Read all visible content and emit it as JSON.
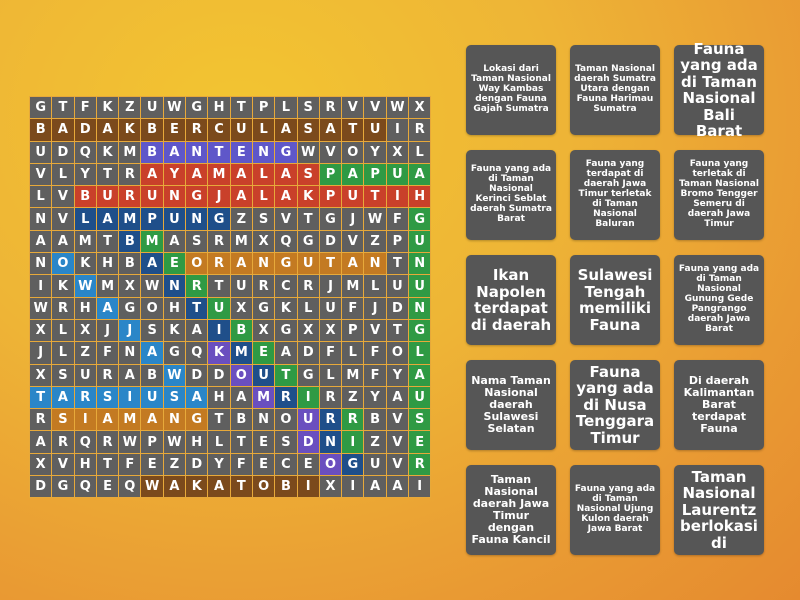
{
  "colors": {
    "gray": "#5f5f5f",
    "brown": "#7b4a1c",
    "violet": "#5f57c9",
    "red": "#c9402a",
    "green": "#2f9a44",
    "navy": "#1f4f8a",
    "light": "#2a86c8",
    "orange": "#c37a22",
    "purple": "#6a4fbf",
    "card": "#565656"
  },
  "grid": {
    "rows": [
      "GTFKZUWGHTPLSRVVWX",
      "BADAKBERCULASATUIR",
      "UDQKMBANTENGWVOYXL",
      "VLYTRAYAMALASPAPUA",
      "LVBURUNGJALAKPUTIH",
      "NVLAMPUNGZSVTGJWFG",
      "AAMTBMASRMXQGDVZPU",
      "NOKHBAEORANGUTANTN",
      "IKWMXWNRTURCRJMLUU",
      "WRHAGOHTUXGKLUFJDN",
      "XLXJJSKAIBXGXXPVTG",
      "JLZFNAGQKMEADFLFOL",
      "XSURABWDDOUTGLMFYA",
      "TARSIUSAHAMRIRZYAU",
      "RSIAMANGTBNOURRBVS",
      "ARQRWPWHLTESDNIZVE",
      "XVHTFEZDYFECEOGUVR",
      "DGQEQWAKATOBIXIAAI"
    ],
    "highlights": [
      {
        "word": "BADAKBERCULASATU",
        "color": "brown",
        "cells": [
          [
            1,
            0
          ],
          [
            1,
            15
          ]
        ],
        "dir": "h"
      },
      {
        "word": "BANTENG",
        "color": "violet",
        "cells": [
          [
            2,
            5
          ],
          [
            2,
            11
          ]
        ],
        "dir": "h"
      },
      {
        "word": "AYAMALAS",
        "color": "red",
        "cells": [
          [
            3,
            5
          ],
          [
            3,
            12
          ]
        ],
        "dir": "h"
      },
      {
        "word": "PAPUA",
        "color": "green",
        "cells": [
          [
            3,
            13
          ],
          [
            3,
            17
          ]
        ],
        "dir": "h"
      },
      {
        "word": "BURUNGJALAKPUTIH",
        "color": "red",
        "cells": [
          [
            4,
            2
          ],
          [
            4,
            17
          ]
        ],
        "dir": "h"
      },
      {
        "word": "LAMPUNG",
        "color": "navy",
        "cells": [
          [
            5,
            2
          ],
          [
            5,
            8
          ]
        ],
        "dir": "h"
      },
      {
        "word": "GUNUNGLAUSER",
        "color": "green",
        "cells": [
          [
            5,
            17
          ],
          [
            16,
            17
          ]
        ],
        "dir": "v"
      },
      {
        "word": "ORANGUTAN",
        "color": "orange",
        "cells": [
          [
            7,
            7
          ],
          [
            7,
            15
          ]
        ],
        "dir": "h"
      },
      {
        "word": "TARSIUSA",
        "color": "light",
        "cells": [
          [
            13,
            0
          ],
          [
            13,
            7
          ]
        ],
        "dir": "h"
      },
      {
        "word": "SIAMANG",
        "color": "orange",
        "cells": [
          [
            14,
            1
          ],
          [
            14,
            7
          ]
        ],
        "dir": "h"
      },
      {
        "word": "WAKATOBI",
        "color": "brown",
        "cells": [
          [
            17,
            5
          ],
          [
            17,
            12
          ]
        ],
        "dir": "h"
      }
    ],
    "diagonals": {
      "light": [
        [
          7,
          1
        ],
        [
          8,
          2
        ],
        [
          9,
          3
        ],
        [
          10,
          4
        ],
        [
          11,
          5
        ],
        [
          12,
          6
        ]
      ],
      "navy": [
        [
          6,
          4
        ],
        [
          7,
          5
        ],
        [
          8,
          6
        ],
        [
          9,
          7
        ],
        [
          10,
          8
        ],
        [
          11,
          9
        ],
        [
          12,
          10
        ],
        [
          13,
          11
        ],
        [
          14,
          13
        ],
        [
          15,
          13
        ],
        [
          16,
          14
        ]
      ],
      "green": [
        [
          6,
          5
        ],
        [
          7,
          6
        ],
        [
          8,
          7
        ],
        [
          9,
          8
        ],
        [
          10,
          9
        ],
        [
          11,
          10
        ],
        [
          12,
          11
        ],
        [
          13,
          12
        ],
        [
          14,
          14
        ],
        [
          15,
          14
        ]
      ],
      "purple": [
        [
          11,
          8
        ],
        [
          12,
          9
        ],
        [
          13,
          10
        ],
        [
          14,
          12
        ],
        [
          15,
          12
        ],
        [
          16,
          13
        ]
      ]
    }
  },
  "cards": [
    {
      "text": "Lokasi dari Taman Nasional Way Kambas dengan Fauna Gajah Sumatra",
      "size": "s"
    },
    {
      "text": "Taman Nasional daerah Sumatra Utara dengan Fauna Harimau Sumatra",
      "size": "s"
    },
    {
      "text": "Fauna yang ada di Taman Nasional Bali Barat",
      "size": "l"
    },
    {
      "text": "Fauna yang ada di Taman Nasional Kerinci Seblat daerah Sumatra Barat",
      "size": "s"
    },
    {
      "text": "Fauna yang terdapat di daerah Jawa Timur terletak di Taman Nasional Baluran",
      "size": "s"
    },
    {
      "text": "Fauna yang terletak di Taman Nasional Bromo Tengger Semeru di daerah Jawa Timur",
      "size": "s"
    },
    {
      "text": "Ikan Napolen terdapat di daerah",
      "size": "l"
    },
    {
      "text": "Sulawesi Tengah memiliki Fauna",
      "size": "l"
    },
    {
      "text": "Fauna yang ada di Taman Nasional Gunung Gede Pangrango daerah Jawa Barat",
      "size": "s"
    },
    {
      "text": "Nama Taman Nasional daerah Sulawesi Selatan",
      "size": "m"
    },
    {
      "text": "Fauna yang ada di Nusa Tenggara Timur",
      "size": "l"
    },
    {
      "text": "Di daerah Kalimantan Barat terdapat Fauna",
      "size": "m"
    },
    {
      "text": "Taman Nasional daerah Jawa Timur dengan Fauna Kancil",
      "size": "m"
    },
    {
      "text": "Fauna yang ada di Taman Nasional Ujung Kulon daerah Jawa Barat",
      "size": "s"
    },
    {
      "text": "Taman Nasional Laurentz berlokasi di",
      "size": "l"
    }
  ]
}
